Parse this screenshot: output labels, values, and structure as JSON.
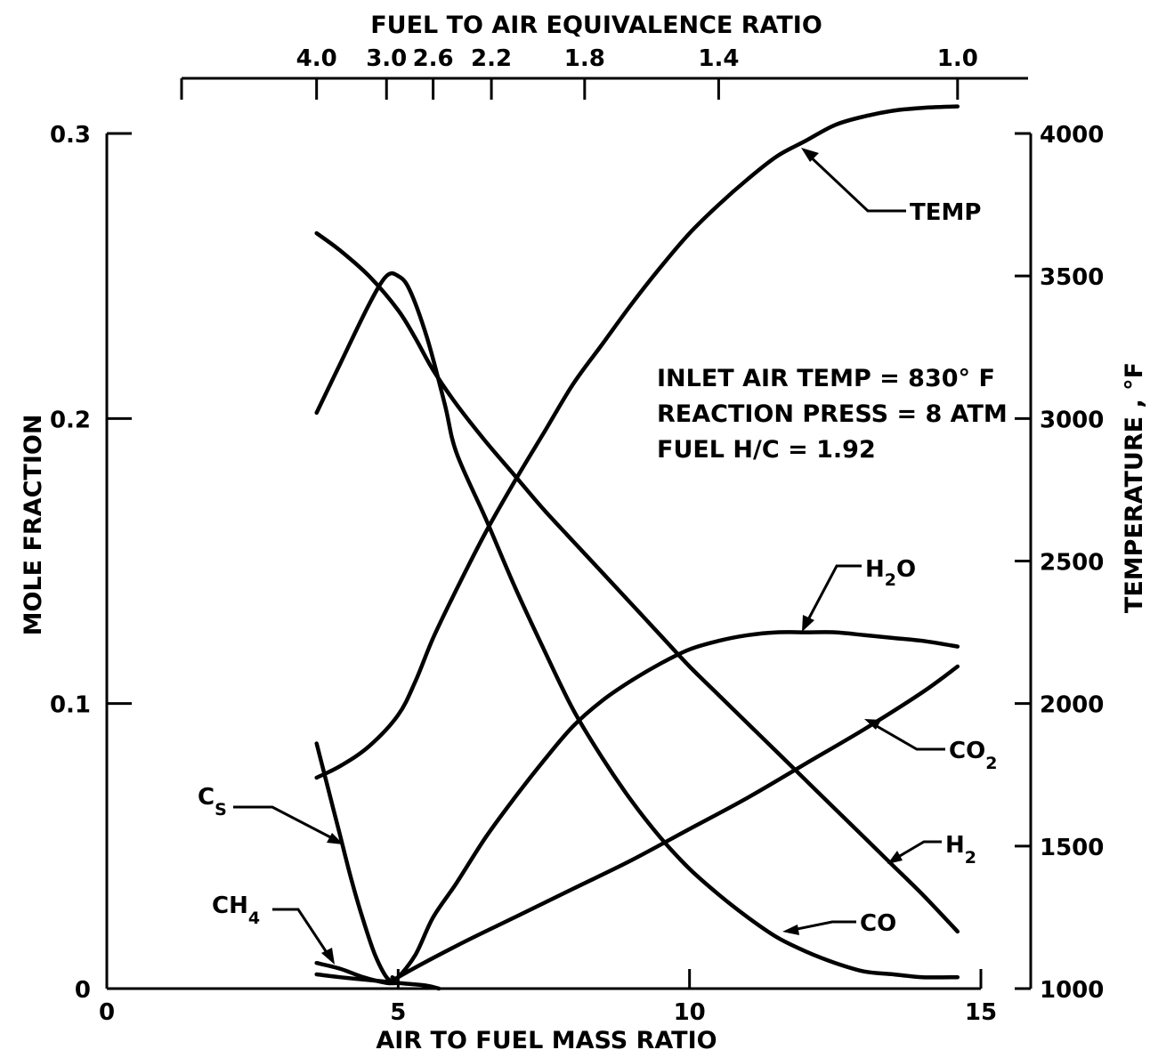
{
  "chart_data": {
    "type": "line",
    "title": "",
    "xlabel": "AIR TO FUEL MASS RATIO",
    "ylabel": "MOLE FRACTION",
    "y2label": "TEMPERATURE , °F",
    "top_axis_label": "FUEL TO AIR EQUIVALENCE RATIO",
    "xlim": [
      0,
      15
    ],
    "ylim": [
      0,
      0.3
    ],
    "y2lim": [
      1000,
      4000
    ],
    "x_ticks": [
      {
        "value": 0,
        "label": "0"
      },
      {
        "value": 5,
        "label": "5"
      },
      {
        "value": 10,
        "label": "10"
      },
      {
        "value": 15,
        "label": "15"
      }
    ],
    "y_ticks": [
      {
        "value": 0,
        "label": "0"
      },
      {
        "value": 0.1,
        "label": "0.1"
      },
      {
        "value": 0.2,
        "label": "0.2"
      },
      {
        "value": 0.3,
        "label": "0.3"
      }
    ],
    "y2_ticks": [
      {
        "value": 1000,
        "label": "1000"
      },
      {
        "value": 1500,
        "label": "1500"
      },
      {
        "value": 2000,
        "label": "2000"
      },
      {
        "value": 2500,
        "label": "2500"
      },
      {
        "value": 3000,
        "label": "3000"
      },
      {
        "value": 3500,
        "label": "3500"
      },
      {
        "value": 4000,
        "label": "4000"
      }
    ],
    "top_ticks": [
      {
        "air_fuel": 3.6,
        "label": "4.0"
      },
      {
        "air_fuel": 4.8,
        "label": "3.0"
      },
      {
        "air_fuel": 5.6,
        "label": "2.6"
      },
      {
        "air_fuel": 6.6,
        "label": "2.2"
      },
      {
        "air_fuel": 8.2,
        "label": "1.8"
      },
      {
        "air_fuel": 10.5,
        "label": "1.4"
      },
      {
        "air_fuel": 14.6,
        "label": "1.0"
      }
    ],
    "top_axis_extent": [
      1.3,
      15.8
    ],
    "series": [
      {
        "name": "TEMP",
        "axis": "right",
        "x": [
          3.6,
          4.0,
          4.5,
          5.0,
          5.3,
          5.6,
          6.0,
          6.5,
          7.0,
          7.5,
          8.0,
          8.5,
          9.0,
          9.5,
          10.0,
          10.5,
          11.0,
          11.5,
          12.0,
          12.5,
          13.0,
          13.5,
          14.0,
          14.6
        ],
        "y": [
          1740,
          1780,
          1850,
          1960,
          2080,
          2230,
          2400,
          2600,
          2780,
          2950,
          3120,
          3260,
          3400,
          3530,
          3650,
          3750,
          3840,
          3920,
          3975,
          4030,
          4060,
          4080,
          4090,
          4095
        ]
      },
      {
        "name": "H2",
        "axis": "left",
        "x": [
          3.6,
          4.0,
          4.5,
          5.0,
          5.3,
          5.6,
          6.0,
          6.5,
          7.0,
          7.5,
          8.0,
          8.5,
          9.0,
          9.5,
          10.0,
          10.5,
          11.0,
          11.5,
          12.0,
          12.5,
          13.0,
          13.5,
          14.0,
          14.6
        ],
        "y": [
          0.265,
          0.259,
          0.25,
          0.238,
          0.228,
          0.217,
          0.205,
          0.192,
          0.18,
          0.168,
          0.157,
          0.146,
          0.135,
          0.124,
          0.113,
          0.103,
          0.093,
          0.083,
          0.073,
          0.063,
          0.053,
          0.043,
          0.033,
          0.02
        ]
      },
      {
        "name": "CO",
        "axis": "left",
        "x": [
          3.6,
          4.0,
          4.5,
          4.8,
          5.0,
          5.2,
          5.5,
          5.8,
          6.0,
          6.5,
          7.0,
          7.5,
          8.0,
          8.5,
          9.0,
          9.5,
          10.0,
          10.5,
          11.0,
          11.5,
          12.0,
          12.5,
          13.0,
          13.5,
          14.0,
          14.6
        ],
        "y": [
          0.202,
          0.219,
          0.24,
          0.25,
          0.25,
          0.245,
          0.228,
          0.205,
          0.188,
          0.165,
          0.141,
          0.119,
          0.098,
          0.081,
          0.066,
          0.053,
          0.042,
          0.033,
          0.025,
          0.018,
          0.013,
          0.009,
          0.006,
          0.005,
          0.004,
          0.004
        ]
      },
      {
        "name": "H2O",
        "axis": "left",
        "x": [
          4.9,
          5.0,
          5.3,
          5.6,
          6.0,
          6.5,
          7.0,
          7.5,
          8.0,
          8.5,
          9.0,
          9.5,
          10.0,
          10.5,
          11.0,
          11.5,
          12.0,
          12.5,
          13.0,
          13.5,
          14.0,
          14.6
        ],
        "y": [
          0.004,
          0.004,
          0.012,
          0.025,
          0.037,
          0.053,
          0.067,
          0.08,
          0.092,
          0.101,
          0.108,
          0.114,
          0.119,
          0.122,
          0.124,
          0.125,
          0.125,
          0.125,
          0.124,
          0.123,
          0.122,
          0.12
        ]
      },
      {
        "name": "CO2",
        "axis": "left",
        "x": [
          4.9,
          5.0,
          6.0,
          7.0,
          8.0,
          9.0,
          10.0,
          11.0,
          12.0,
          13.0,
          14.0,
          14.6
        ],
        "y": [
          0.002,
          0.004,
          0.015,
          0.025,
          0.035,
          0.045,
          0.056,
          0.067,
          0.079,
          0.091,
          0.104,
          0.113
        ]
      },
      {
        "name": "CS",
        "axis": "left",
        "x": [
          3.6,
          3.8,
          4.0,
          4.2,
          4.4,
          4.6,
          4.8,
          4.95
        ],
        "y": [
          0.086,
          0.07,
          0.054,
          0.038,
          0.024,
          0.012,
          0.004,
          0.002
        ]
      },
      {
        "name": "CH4",
        "axis": "left",
        "x": [
          3.6,
          4.0,
          4.4,
          4.8,
          5.0
        ],
        "y": [
          0.009,
          0.007,
          0.004,
          0.002,
          0.002
        ]
      },
      {
        "name": "",
        "axis": "left",
        "x": [
          3.6,
          4.0,
          4.5,
          5.0,
          5.5,
          5.7
        ],
        "y": [
          0.005,
          0.004,
          0.003,
          0.002,
          0.001,
          0.0
        ]
      }
    ]
  },
  "labels": {
    "temp": "TEMP",
    "h2o_base": "H",
    "h2o_sub": "2",
    "h2o_tail": "O",
    "co2_base": "CO",
    "co2_sub": "2",
    "h2_base": "H",
    "h2_sub": "2",
    "co": "CO",
    "cs_base": "C",
    "cs_sub": "S",
    "ch4_base": "CH",
    "ch4_sub": "4"
  },
  "annotation": {
    "line1": "INLET AIR TEMP = 830° F",
    "line2": "REACTION PRESS = 8 ATM",
    "line3": "FUEL H/C = 1.92"
  }
}
